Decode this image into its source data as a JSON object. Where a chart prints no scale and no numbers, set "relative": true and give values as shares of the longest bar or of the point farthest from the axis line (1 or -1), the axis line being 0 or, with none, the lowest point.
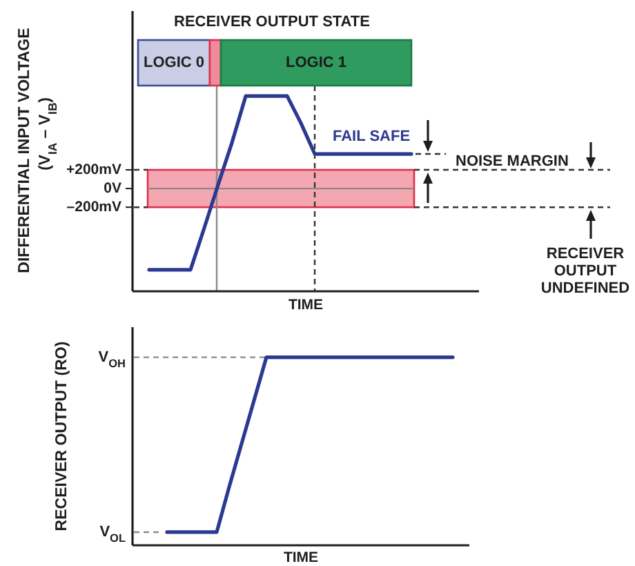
{
  "chart_data": [
    {
      "type": "line",
      "categories": [
        null,
        null,
        null,
        null,
        null,
        null,
        null,
        null,
        null,
        null,
        null,
        null,
        null,
        null,
        null,
        null,
        null,
        null,
        null,
        null
      ],
      "series": [
        {
          "color": "#2b3990",
          "values": [
            -870,
            -870,
            -870,
            -870,
            -420,
            40,
            490,
            990,
            990,
            990,
            990,
            700,
            370,
            370,
            370,
            370,
            370,
            370,
            370,
            370
          ]
        }
      ],
      "ylabel": "DIFFERENTIAL INPUT VOLTAGE\n(V$_{IA}$ – V$_{IB}$)",
      "xlabel": "TIME",
      "ylim": [
        -1100,
        1900
      ],
      "yticks": [
        {
          "value": 200,
          "label": "+200mV"
        },
        {
          "value": 0,
          "label": "0V"
        },
        {
          "value": -200,
          "label": "–200mV"
        }
      ],
      "ref_lines": [
        {
          "axis": "y",
          "value": 0,
          "color": "#8a8a8a"
        }
      ],
      "bands": [
        {
          "axis": "y",
          "from": -200,
          "to": 200,
          "color": "#f4a7b1"
        }
      ],
      "annotations": [
        "RECEIVER OUTPUT STATE",
        "LOGIC 0",
        "LOGIC 1",
        "FAIL SAFE",
        "NOISE MARGIN",
        "RECEIVER\nOUTPUT\nUNDEFINED"
      ]
    },
    {
      "type": "line",
      "relative": true,
      "categories": [
        null,
        null,
        null,
        null,
        null,
        null,
        null,
        null,
        null,
        null,
        null,
        null,
        null,
        null,
        null,
        null,
        null,
        null,
        null,
        null,
        null,
        null,
        null,
        null
      ],
      "series": [
        {
          "color": "#2b3990",
          "values": [
            0.07,
            0.07,
            0.07,
            0.07,
            0.07,
            0.31,
            0.54,
            0.77,
            1,
            1,
            1,
            1,
            1,
            1,
            1,
            1,
            1,
            1,
            1,
            1,
            1,
            1,
            1,
            1
          ]
        }
      ],
      "ylabel": "RECEIVER OUTPUT (RO)",
      "xlabel": "TIME",
      "annotations": [
        "V$_{OH}$",
        "V$_{OL}$"
      ]
    }
  ]
}
